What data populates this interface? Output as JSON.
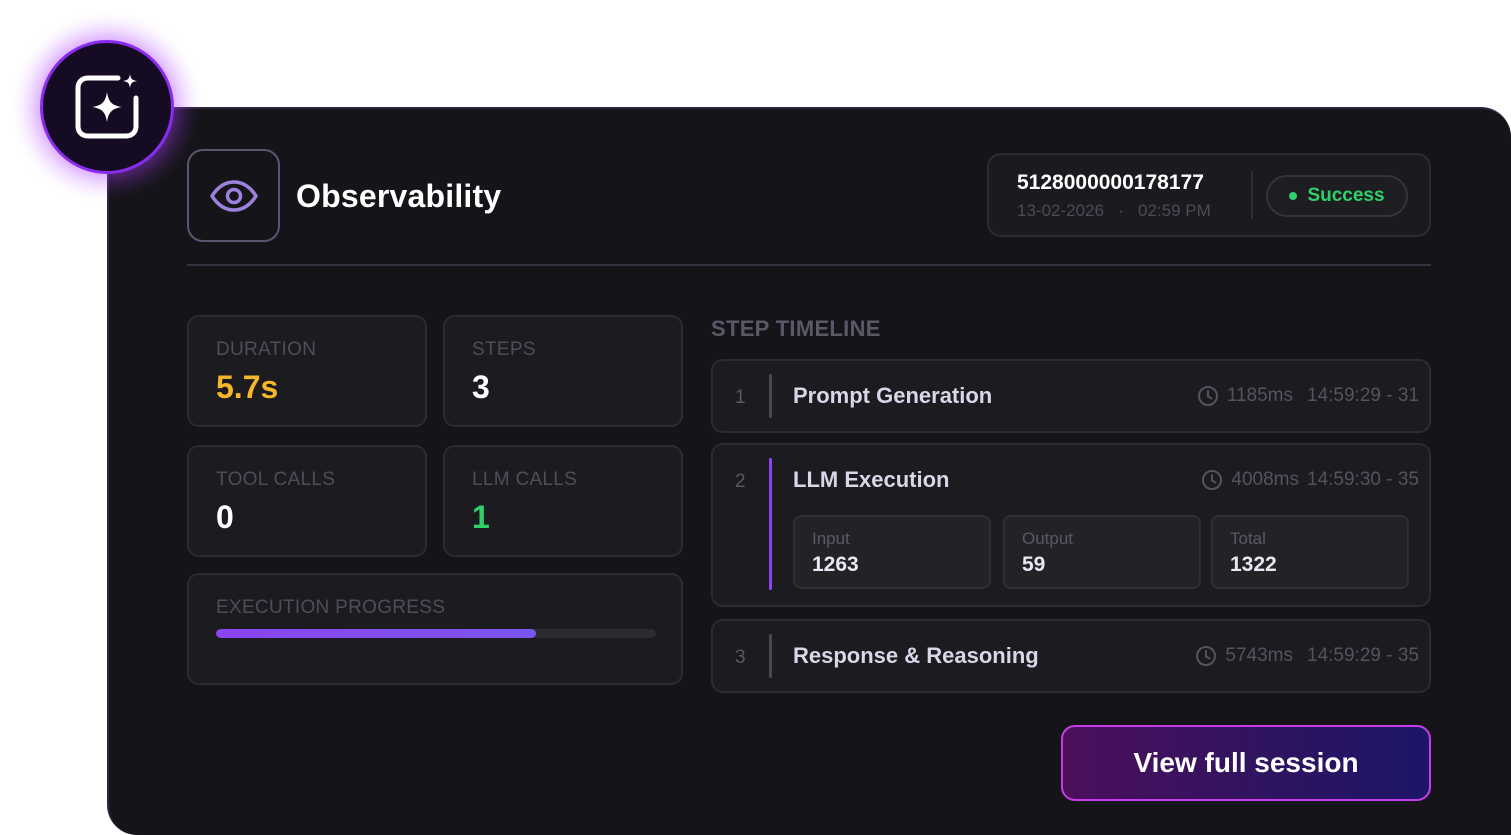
{
  "header": {
    "badge_icon": "sparkle-icon",
    "logo_icon": "eye-icon",
    "title": "Observability"
  },
  "session": {
    "id": "5128000000178177",
    "date": "13-02-2026",
    "separator": "·",
    "time": "02:59 PM",
    "status": "Success",
    "status_color": "#2fd06a"
  },
  "stats": {
    "duration": {
      "label": "DURATION",
      "value": "5.7s",
      "color": "#f6b72a"
    },
    "steps": {
      "label": "STEPS",
      "value": "3",
      "color": "#ffffff"
    },
    "tool_calls": {
      "label": "TOOL CALLS",
      "value": "0",
      "color": "#ffffff"
    },
    "llm_calls": {
      "label": "LLM CALLS",
      "value": "1",
      "color": "#2fd06a"
    }
  },
  "progress": {
    "label": "EXECUTION PROGRESS",
    "fraction": 0.727
  },
  "timeline": {
    "heading": "STEP TIMELINE",
    "steps": [
      {
        "num": "1",
        "name": "Prompt Generation",
        "duration": "1185ms",
        "range": "14:59:29 - 31"
      },
      {
        "num": "2",
        "name": "LLM Execution",
        "duration": "4008ms",
        "range": "14:59:30 - 35",
        "tokens": [
          {
            "label": "Input",
            "value": "1263"
          },
          {
            "label": "Output",
            "value": "59"
          },
          {
            "label": "Total",
            "value": "1322"
          }
        ]
      },
      {
        "num": "3",
        "name": "Response & Reasoning",
        "duration": "5743ms",
        "range": "14:59:29 - 35"
      }
    ]
  },
  "cta": {
    "label": "View full session"
  },
  "colors": {
    "accent": "#8a44f2",
    "background": "#151519"
  }
}
